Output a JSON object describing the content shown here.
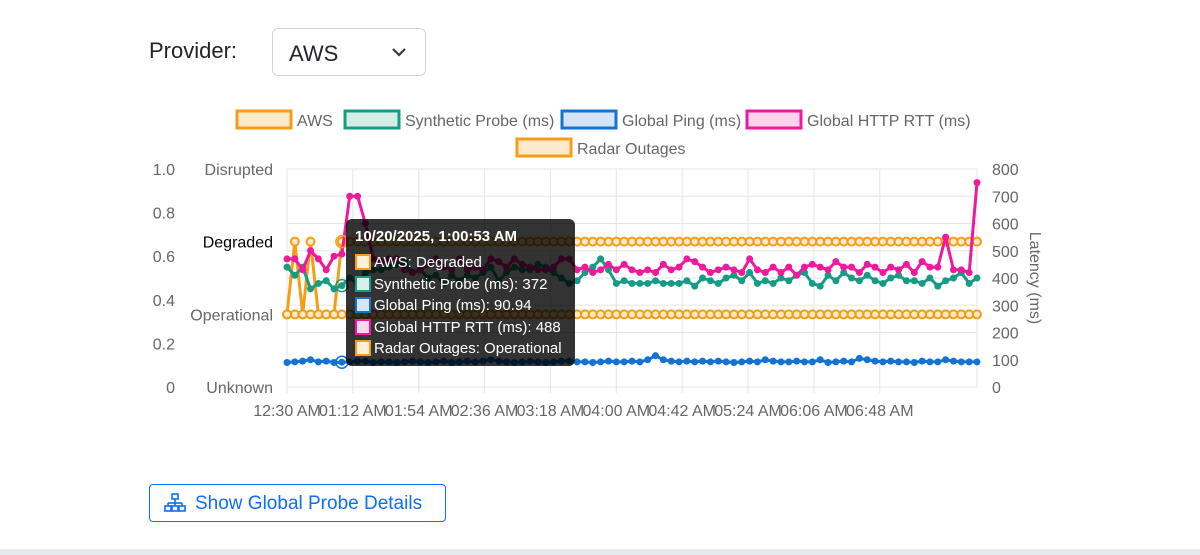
{
  "provider": {
    "label": "Provider:",
    "selected": "AWS"
  },
  "button": {
    "label": "Show Global Probe Details"
  },
  "colors": {
    "aws": "#f59d16",
    "synthetic": "#179b84",
    "ping": "#1473d2",
    "http": "#ee1a9d",
    "radar": "#f59d16"
  },
  "tooltip": {
    "title": "10/20/2025, 1:00:53 AM",
    "rows": [
      {
        "text": "AWS: Degraded",
        "color": "#f59d16",
        "fill": "#fff0d9"
      },
      {
        "text": "Synthetic Probe (ms): 372",
        "color": "#179b84",
        "fill": "#d6efe9"
      },
      {
        "text": "Global Ping (ms): 90.94",
        "color": "#1473d2",
        "fill": "#d6e6f7"
      },
      {
        "text": "Global HTTP RTT (ms): 488",
        "color": "#ee1a9d",
        "fill": "#fcd8ee"
      },
      {
        "text": "Radar Outages: Operational",
        "color": "#f59d16",
        "fill": "#fff0d9"
      }
    ]
  },
  "chart_data": {
    "type": "line",
    "legend": [
      "AWS",
      "Synthetic Probe (ms)",
      "Global Ping (ms)",
      "Global HTTP RTT (ms)",
      "Radar Outages"
    ],
    "legend_position": "top",
    "x_ticks": [
      "12:30 AM",
      "01:12 AM",
      "01:54 AM",
      "02:36 AM",
      "03:18 AM",
      "04:00 AM",
      "04:42 AM",
      "05:24 AM",
      "06:06 AM",
      "06:48 AM"
    ],
    "x_range_minutes": [
      0,
      440
    ],
    "y_left_ticks": [
      "0",
      "0.2",
      "0.4",
      "0.6",
      "0.8",
      "1.0"
    ],
    "y_left_status": [
      "Unknown",
      "Operational",
      "Degraded",
      "Disrupted"
    ],
    "y_left_status_values": [
      0,
      0.333,
      0.667,
      1.0
    ],
    "y_left_active": "Degraded",
    "y_right_label": "Latency (ms)",
    "y_right_ticks": [
      "0",
      "100",
      "200",
      "300",
      "400",
      "500",
      "600",
      "700",
      "800"
    ],
    "ylim_left": [
      0,
      1.0
    ],
    "ylim_right": [
      0,
      800
    ],
    "grid": true,
    "series": [
      {
        "name": "AWS",
        "axis": "left",
        "values": [
          0.333,
          0.667,
          0.333,
          0.667,
          0.333,
          0.333,
          0.333,
          0.667,
          0.667,
          0.667,
          0.667,
          0.667,
          0.667,
          0.667,
          0.667,
          0.667,
          0.667,
          0.667,
          0.667,
          0.667,
          0.667,
          0.667,
          0.667,
          0.667,
          0.667,
          0.667,
          0.667,
          0.667,
          0.667,
          0.667,
          0.667,
          0.667,
          0.667,
          0.667,
          0.667,
          0.667,
          0.667,
          0.667,
          0.667,
          0.667,
          0.667,
          0.667,
          0.667,
          0.667,
          0.667,
          0.667,
          0.667,
          0.667,
          0.667,
          0.667,
          0.667,
          0.667,
          0.667,
          0.667,
          0.667,
          0.667,
          0.667,
          0.667,
          0.667,
          0.667,
          0.667,
          0.667,
          0.667,
          0.667,
          0.667,
          0.667,
          0.667,
          0.667,
          0.667,
          0.667,
          0.667,
          0.667,
          0.667,
          0.667,
          0.667,
          0.667,
          0.667,
          0.667,
          0.667,
          0.667,
          0.667,
          0.667,
          0.667,
          0.667,
          0.667,
          0.667,
          0.667,
          0.667,
          0.667
        ]
      },
      {
        "name": "Synthetic Probe (ms)",
        "axis": "right",
        "values": [
          440,
          410,
          440,
          360,
          380,
          390,
          360,
          372,
          400,
          380,
          420,
          430,
          430,
          440,
          450,
          460,
          420,
          430,
          400,
          410,
          380,
          410,
          390,
          410,
          400,
          420,
          440,
          390,
          420,
          440,
          430,
          430,
          450,
          440,
          420,
          400,
          380,
          390,
          420,
          440,
          470,
          430,
          380,
          390,
          380,
          380,
          380,
          390,
          380,
          380,
          380,
          390,
          370,
          400,
          390,
          380,
          400,
          410,
          390,
          420,
          380,
          390,
          380,
          400,
          390,
          410,
          420,
          380,
          370,
          410,
          390,
          420,
          400,
          390,
          410,
          390,
          380,
          400,
          410,
          390,
          390,
          380,
          400,
          370,
          390,
          400,
          420,
          380,
          400
        ]
      },
      {
        "name": "Global Ping (ms)",
        "axis": "right",
        "values": [
          90,
          92,
          95,
          100,
          92,
          95,
          90,
          91,
          92,
          95,
          95,
          90,
          92,
          92,
          90,
          92,
          95,
          92,
          90,
          92,
          95,
          90,
          92,
          95,
          92,
          95,
          100,
          95,
          92,
          90,
          92,
          95,
          92,
          90,
          92,
          95,
          95,
          92,
          92,
          90,
          92,
          95,
          92,
          92,
          95,
          92,
          100,
          115,
          100,
          95,
          92,
          95,
          92,
          95,
          92,
          95,
          92,
          90,
          92,
          95,
          92,
          100,
          95,
          92,
          92,
          95,
          92,
          92,
          100,
          90,
          92,
          95,
          92,
          105,
          100,
          95,
          92,
          95,
          92,
          92,
          90,
          95,
          92,
          92,
          100,
          95,
          92,
          92,
          92
        ]
      },
      {
        "name": "Global HTTP RTT (ms)",
        "axis": "right",
        "values": [
          470,
          470,
          430,
          500,
          470,
          430,
          480,
          488,
          700,
          700,
          600,
          470,
          460,
          470,
          470,
          430,
          420,
          430,
          450,
          470,
          440,
          430,
          470,
          430,
          440,
          430,
          470,
          460,
          440,
          470,
          450,
          440,
          430,
          430,
          440,
          470,
          470,
          430,
          440,
          420,
          430,
          450,
          430,
          450,
          430,
          420,
          430,
          420,
          450,
          430,
          440,
          470,
          460,
          440,
          420,
          430,
          440,
          430,
          420,
          470,
          430,
          420,
          440,
          420,
          440,
          410,
          440,
          450,
          440,
          430,
          460,
          440,
          440,
          420,
          450,
          440,
          420,
          440,
          430,
          450,
          420,
          460,
          440,
          440,
          550,
          430,
          430,
          420,
          750
        ]
      },
      {
        "name": "Radar Outages",
        "axis": "left",
        "values": [
          0.333,
          0.333,
          0.333,
          0.333,
          0.333,
          0.333,
          0.333,
          0.333,
          0.333,
          0.333,
          0.333,
          0.333,
          0.333,
          0.333,
          0.333,
          0.333,
          0.333,
          0.333,
          0.333,
          0.333,
          0.333,
          0.333,
          0.333,
          0.333,
          0.333,
          0.333,
          0.333,
          0.333,
          0.333,
          0.333,
          0.333,
          0.333,
          0.333,
          0.333,
          0.333,
          0.333,
          0.333,
          0.333,
          0.333,
          0.333,
          0.333,
          0.333,
          0.333,
          0.333,
          0.333,
          0.333,
          0.333,
          0.333,
          0.333,
          0.333,
          0.333,
          0.333,
          0.333,
          0.333,
          0.333,
          0.333,
          0.333,
          0.333,
          0.333,
          0.333,
          0.333,
          0.333,
          0.333,
          0.333,
          0.333,
          0.333,
          0.333,
          0.333,
          0.333,
          0.333,
          0.333,
          0.333,
          0.333,
          0.333,
          0.333,
          0.333,
          0.333,
          0.333,
          0.333,
          0.333,
          0.333,
          0.333,
          0.333,
          0.333,
          0.333,
          0.333,
          0.333,
          0.333,
          0.333
        ]
      }
    ]
  }
}
